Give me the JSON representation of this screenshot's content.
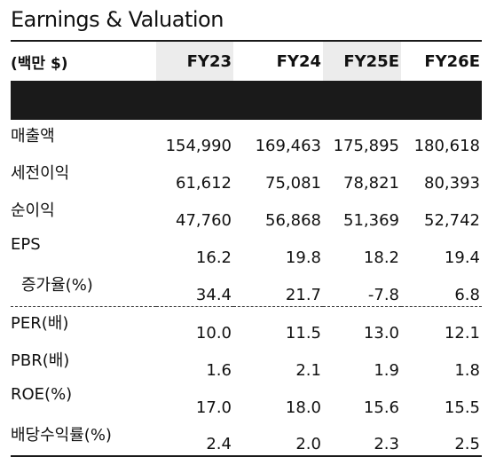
{
  "title": "Earnings & Valuation",
  "header": {
    "unit_label": "(백만 $)",
    "columns": [
      "FY23",
      "FY24",
      "FY25E",
      "FY26E"
    ]
  },
  "rows": [
    {
      "label": "매출액",
      "values": [
        "154,990",
        "169,463",
        "175,895",
        "180,618"
      ]
    },
    {
      "label": "세전이익",
      "values": [
        "61,612",
        "75,081",
        "78,821",
        "80,393"
      ]
    },
    {
      "label": "순이익",
      "values": [
        "47,760",
        "56,868",
        "51,369",
        "52,742"
      ]
    },
    {
      "label": "EPS",
      "values": [
        "16.2",
        "19.8",
        "18.2",
        "19.4"
      ]
    },
    {
      "label": "증가율(%)",
      "values": [
        "34.4",
        "21.7",
        "-7.8",
        "6.8"
      ]
    },
    {
      "label": "PER(배)",
      "values": [
        "10.0",
        "11.5",
        "13.0",
        "12.1"
      ]
    },
    {
      "label": "PBR(배)",
      "values": [
        "1.6",
        "2.1",
        "1.9",
        "1.8"
      ]
    },
    {
      "label": "ROE(%)",
      "values": [
        "17.0",
        "18.0",
        "15.6",
        "15.5"
      ]
    },
    {
      "label": "배당수익률(%)",
      "values": [
        "2.4",
        "2.0",
        "2.3",
        "2.5"
      ]
    }
  ]
}
